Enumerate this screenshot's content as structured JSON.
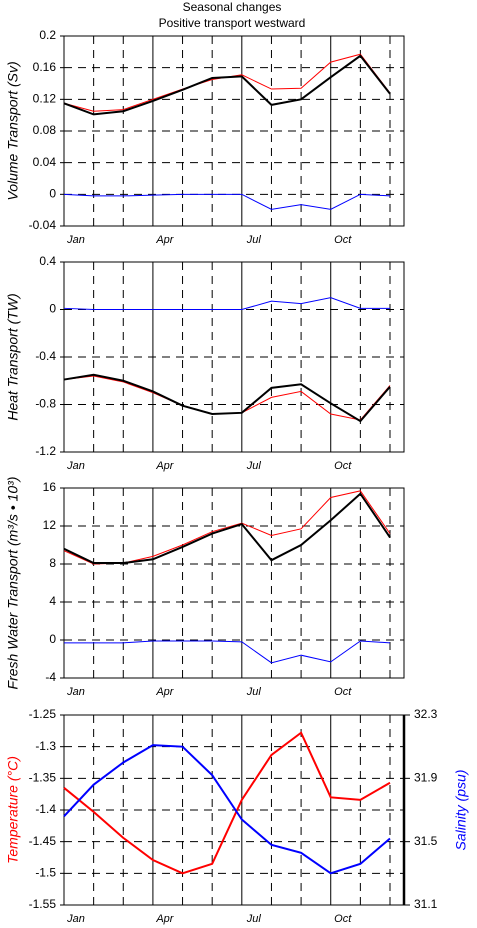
{
  "chart_data": [
    {
      "type": "line",
      "title": "Seasonal changes",
      "subtitle": "Positive transport westward",
      "ylabel": "Volume Transport (Sv)",
      "categories": [
        "Jan",
        null,
        null,
        "Apr",
        null,
        null,
        "Jul",
        null,
        null,
        "Oct",
        null,
        null
      ],
      "ylim": [
        -0.04,
        0.2
      ],
      "yticks": [
        -0.04,
        0,
        0.04,
        0.08,
        0.12,
        0.16,
        0.2
      ],
      "grid": true,
      "series": [
        {
          "color": "#ff0000",
          "values": [
            0.115,
            0.105,
            0.107,
            0.12,
            0.133,
            0.145,
            0.151,
            0.133,
            0.134,
            0.167,
            0.177,
            0.128
          ]
        },
        {
          "color": "#000000",
          "values": [
            0.115,
            0.101,
            0.105,
            0.118,
            0.132,
            0.147,
            0.149,
            0.113,
            0.12,
            0.148,
            0.175,
            0.127
          ]
        },
        {
          "color": "#0000ff",
          "values": [
            0,
            -0.002,
            -0.002,
            -0.001,
            0,
            0,
            0,
            -0.019,
            -0.013,
            -0.019,
            0,
            -0.002
          ]
        }
      ]
    },
    {
      "type": "line",
      "ylabel": "Heat Transport (TW)",
      "categories": [
        "Jan",
        null,
        null,
        "Apr",
        null,
        null,
        "Jul",
        null,
        null,
        "Oct",
        null,
        null
      ],
      "ylim": [
        -1.2,
        0.4
      ],
      "yticks": [
        -1.2,
        -0.8,
        -0.4,
        0,
        0.4
      ],
      "grid": true,
      "series": [
        {
          "color": "#ff0000",
          "values": [
            -0.59,
            -0.56,
            -0.61,
            -0.7,
            -0.81,
            -0.88,
            -0.87,
            -0.74,
            -0.69,
            -0.88,
            -0.93,
            -0.64
          ]
        },
        {
          "color": "#000000",
          "values": [
            -0.59,
            -0.55,
            -0.6,
            -0.69,
            -0.81,
            -0.88,
            -0.87,
            -0.66,
            -0.63,
            -0.79,
            -0.94,
            -0.65
          ]
        },
        {
          "color": "#0000ff",
          "values": [
            0.01,
            0,
            0,
            0,
            0,
            0,
            0,
            0.07,
            0.05,
            0.1,
            0.01,
            0.01
          ]
        }
      ]
    },
    {
      "type": "line",
      "ylabel": "Fresh Water Transport (m³/s • 10³)",
      "categories": [
        "Jan",
        null,
        null,
        "Apr",
        null,
        null,
        "Jul",
        null,
        null,
        "Oct",
        null,
        null
      ],
      "ylim": [
        -4,
        16
      ],
      "yticks": [
        -4,
        0,
        4,
        8,
        12,
        16
      ],
      "grid": true,
      "series": [
        {
          "color": "#ff0000",
          "values": [
            9.4,
            8,
            8.1,
            8.8,
            10,
            11.4,
            12.3,
            11,
            11.7,
            15,
            15.7,
            11.2
          ]
        },
        {
          "color": "#000000",
          "values": [
            9.6,
            8.1,
            8.1,
            8.5,
            9.8,
            11.2,
            12.2,
            8.4,
            10,
            12.6,
            15.4,
            10.8
          ]
        },
        {
          "color": "#0000ff",
          "values": [
            -0.3,
            -0.3,
            -0.3,
            -0.1,
            -0.1,
            -0.1,
            -0.2,
            -2.4,
            -1.6,
            -2.3,
            -0.1,
            -0.3
          ]
        }
      ]
    },
    {
      "type": "line",
      "ylabel": "Temperature (°C)",
      "ylabel_color": "#ff0000",
      "y2label": "Salinity (psu)",
      "y2label_color": "#0000ff",
      "categories": [
        "Jan",
        null,
        null,
        "Apr",
        null,
        null,
        "Jul",
        null,
        null,
        "Oct",
        null,
        null
      ],
      "ylim": [
        -1.55,
        -1.25
      ],
      "yticks": [
        -1.55,
        -1.5,
        -1.45,
        -1.4,
        -1.35,
        -1.3,
        -1.25
      ],
      "y2lim": [
        31.1,
        32.3
      ],
      "y2ticks": [
        31.1,
        31.5,
        31.9,
        32.3
      ],
      "grid": true,
      "series": [
        {
          "color": "#ff0000",
          "values": [
            -1.365,
            -1.403,
            -1.444,
            -1.479,
            -1.5,
            -1.485,
            -1.384,
            -1.313,
            -1.278,
            -1.38,
            -1.384,
            -1.357
          ]
        },
        {
          "color": "#0000ff",
          "axis": "y2",
          "values": [
            31.66,
            31.86,
            32.0,
            32.11,
            32.1,
            31.92,
            31.64,
            31.48,
            31.43,
            31.3,
            31.36,
            31.52
          ]
        }
      ]
    }
  ]
}
